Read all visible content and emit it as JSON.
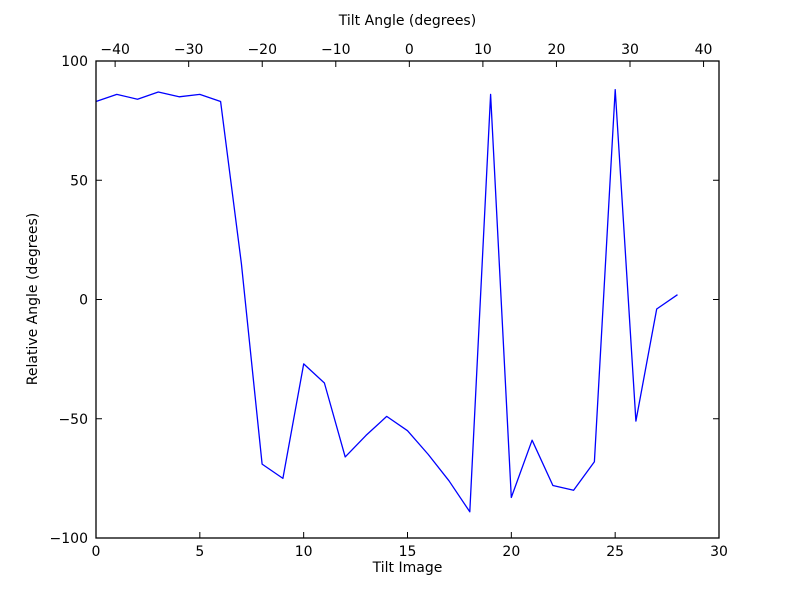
{
  "figure": {
    "background": "#ffffff",
    "axis_color": "#000000"
  },
  "chart_data": {
    "type": "line",
    "title": "",
    "xlabel": "Tilt Image",
    "xlabel_top": "Tilt Angle (degrees)",
    "ylabel": "Relative Angle (degrees)",
    "xlim": [
      0,
      30
    ],
    "ylim": [
      -100,
      100
    ],
    "top_xlim": [
      -42.6,
      42.1
    ],
    "xticks": [
      0,
      5,
      10,
      15,
      20,
      25,
      30
    ],
    "xticks_top": [
      -40,
      -30,
      -20,
      -10,
      0,
      10,
      20,
      30,
      40
    ],
    "yticks": [
      100,
      50,
      0,
      -50,
      -100
    ],
    "grid": false,
    "legend": null,
    "line_color": "#0000ff",
    "x": [
      0,
      1,
      2,
      3,
      4,
      5,
      6,
      7,
      8,
      9,
      10,
      11,
      12,
      13,
      14,
      15,
      16,
      17,
      18,
      19,
      20,
      21,
      22,
      23,
      24,
      25,
      26,
      27,
      28
    ],
    "y": [
      83,
      86,
      84,
      87,
      85,
      86,
      83,
      15,
      -69,
      -75,
      -27,
      -35,
      -66,
      -57,
      -49,
      -55,
      -65,
      -76,
      -89,
      86,
      -83,
      -59,
      -78,
      -80,
      -68,
      88,
      -51,
      -4,
      2
    ]
  }
}
